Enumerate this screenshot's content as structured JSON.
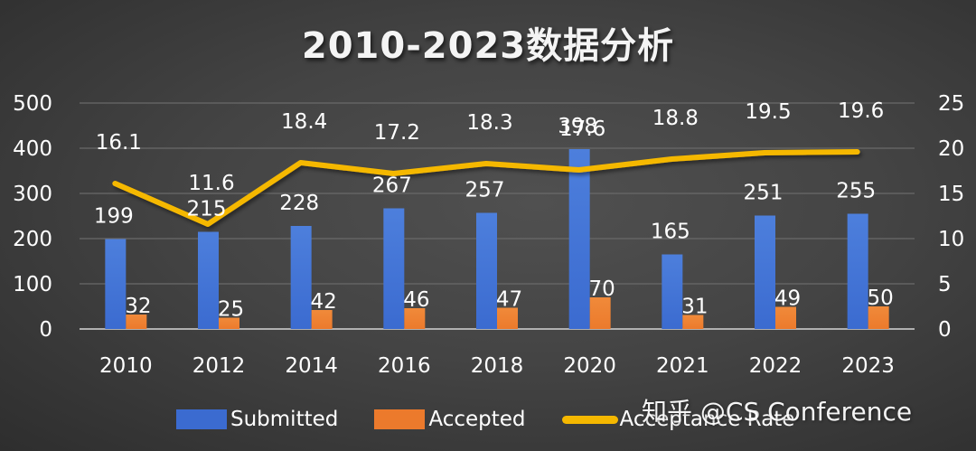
{
  "title": "2010-2023数据分析",
  "watermark": "知乎 @CS Conference",
  "legend": {
    "submitted": "Submitted",
    "accepted": "Accepted",
    "rate": "Acceptance Rate"
  },
  "colors": {
    "submitted": "#3b6bd0",
    "accepted": "#ec7a2c",
    "rate": "#f5b800",
    "gridline": "#6a6a6a",
    "axis": "#b0b0b0"
  },
  "chart_data": {
    "type": "bar",
    "title": "2010-2023数据分析",
    "categories": [
      "2010",
      "2012",
      "2014",
      "2016",
      "2018",
      "2020",
      "2021",
      "2022",
      "2023"
    ],
    "series": [
      {
        "name": "Submitted",
        "type": "bar",
        "axis": "left",
        "values": [
          199,
          215,
          228,
          267,
          257,
          398,
          165,
          251,
          255
        ]
      },
      {
        "name": "Accepted",
        "type": "bar",
        "axis": "left",
        "values": [
          32,
          25,
          42,
          46,
          47,
          70,
          31,
          49,
          50
        ]
      },
      {
        "name": "Acceptance Rate",
        "type": "line",
        "axis": "right",
        "values": [
          16.1,
          11.6,
          18.4,
          17.2,
          18.3,
          17.6,
          18.8,
          19.5,
          19.6
        ]
      }
    ],
    "xlabel": "",
    "ylabel": "",
    "ylim": [
      0,
      500
    ],
    "y_ticks": [
      0,
      100,
      200,
      300,
      400,
      500
    ],
    "y2lim": [
      0,
      25
    ],
    "y2_ticks": [
      0,
      5,
      10,
      15,
      20,
      25
    ],
    "grid": true,
    "legend_position": "bottom"
  }
}
